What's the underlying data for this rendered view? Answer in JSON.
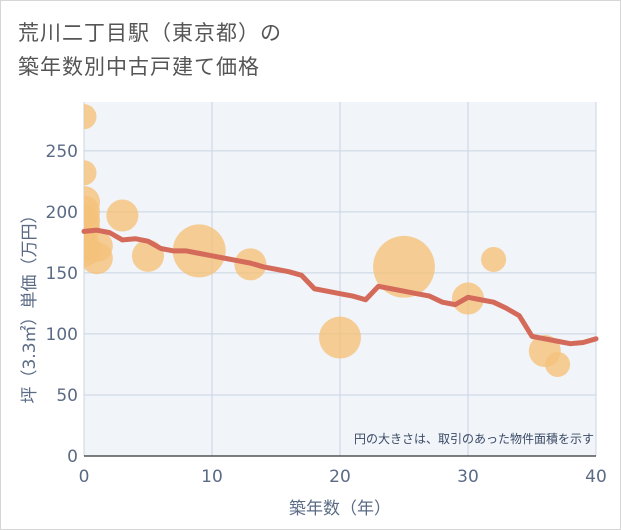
{
  "title_line1": "荒川二丁目駅（東京都）の",
  "title_line2": "築年数別中古戸建て価格",
  "note": "円の大きさは、取引のあった物件面積を示す",
  "colors": {
    "bubble": "#f5c27a",
    "line": "#d46a5a",
    "grid": "#c9d4e2",
    "plot_bg": "#f1f4f8",
    "text": "#5b6b85"
  },
  "chart_data": {
    "type": "scatter",
    "xlabel": "築年数（年）",
    "ylabel": "坪（3.3㎡）単価（万円）",
    "xlim": [
      0,
      40
    ],
    "ylim": [
      0,
      290
    ],
    "xticks": [
      0,
      10,
      20,
      30,
      40
    ],
    "yticks": [
      0,
      50,
      100,
      150,
      200,
      250
    ],
    "bubbles": [
      {
        "x": 0,
        "y": 278,
        "size": 1
      },
      {
        "x": 0,
        "y": 232,
        "size": 1
      },
      {
        "x": 0,
        "y": 208,
        "size": 2
      },
      {
        "x": 0,
        "y": 200,
        "size": 2
      },
      {
        "x": 0,
        "y": 193,
        "size": 2
      },
      {
        "x": 0,
        "y": 187,
        "size": 2
      },
      {
        "x": 0,
        "y": 172,
        "size": 2
      },
      {
        "x": 0,
        "y": 168,
        "size": 2
      },
      {
        "x": 1,
        "y": 172,
        "size": 2
      },
      {
        "x": 1,
        "y": 162,
        "size": 2
      },
      {
        "x": 3,
        "y": 197,
        "size": 2
      },
      {
        "x": 5,
        "y": 164,
        "size": 2
      },
      {
        "x": 9,
        "y": 168,
        "size": 7
      },
      {
        "x": 13,
        "y": 157,
        "size": 2
      },
      {
        "x": 20,
        "y": 97,
        "size": 4
      },
      {
        "x": 25,
        "y": 155,
        "size": 10
      },
      {
        "x": 30,
        "y": 129,
        "size": 2
      },
      {
        "x": 32,
        "y": 161,
        "size": 1
      },
      {
        "x": 36,
        "y": 86,
        "size": 2
      },
      {
        "x": 37,
        "y": 75,
        "size": 1
      }
    ],
    "trend": {
      "x": [
        0,
        1,
        2,
        3,
        4,
        5,
        6,
        7,
        8,
        9,
        10,
        11,
        12,
        13,
        14,
        15,
        16,
        17,
        18,
        19,
        20,
        21,
        22,
        23,
        24,
        25,
        26,
        27,
        28,
        29,
        30,
        31,
        32,
        33,
        34,
        35,
        36,
        37,
        38,
        39,
        40
      ],
      "y": [
        184,
        185,
        183,
        177,
        178,
        176,
        170,
        168,
        168,
        166,
        164,
        162,
        160,
        158,
        155,
        153,
        151,
        148,
        137,
        135,
        133,
        131,
        128,
        139,
        137,
        135,
        133,
        131,
        126,
        124,
        130,
        128,
        126,
        121,
        115,
        98,
        96,
        94,
        92,
        93,
        96
      ]
    }
  }
}
